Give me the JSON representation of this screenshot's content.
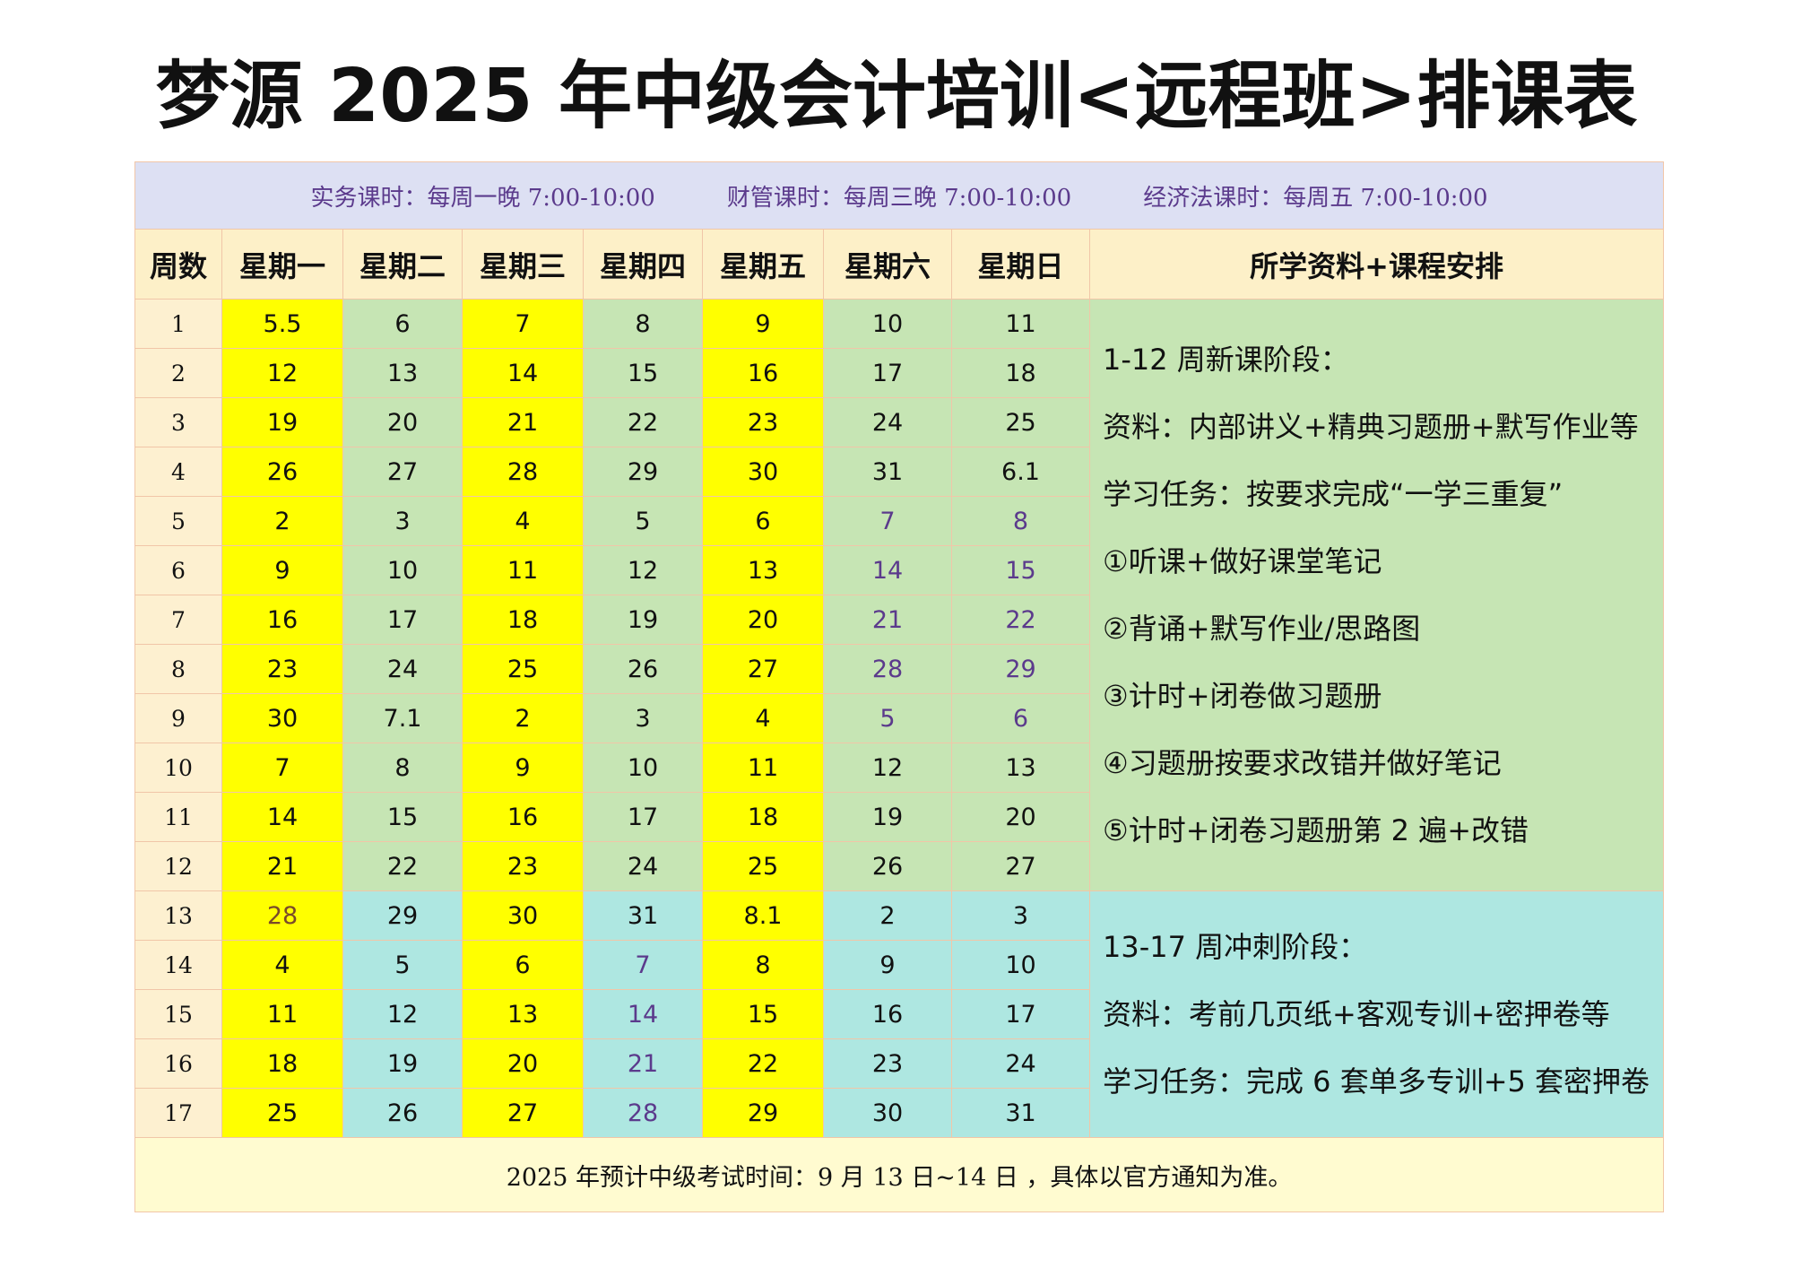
{
  "header": {
    "title": "梦源 2025 年中级会计培训<远程班>排课表"
  },
  "info": [
    "实务课时：每周一晚 7:00-10:00",
    "财管课时：每周三晚 7:00-10:00",
    "经济法课时：每周五 7:00-10:00"
  ],
  "table": {
    "columns": [
      "周数",
      "星期一",
      "星期二",
      "星期三",
      "星期四",
      "星期五",
      "星期六",
      "星期日",
      "所学资料+课程安排"
    ],
    "rows": [
      [
        "1",
        "5.5",
        "6",
        "7",
        "8",
        "9",
        "10",
        "11"
      ],
      [
        "2",
        "12",
        "13",
        "14",
        "15",
        "16",
        "17",
        "18"
      ],
      [
        "3",
        "19",
        "20",
        "21",
        "22",
        "23",
        "24",
        "25"
      ],
      [
        "4",
        "26",
        "27",
        "28",
        "29",
        "30",
        "31",
        "6.1"
      ],
      [
        "5",
        "2",
        "3",
        "4",
        "5",
        "6",
        "7",
        "8"
      ],
      [
        "6",
        "9",
        "10",
        "11",
        "12",
        "13",
        "14",
        "15"
      ],
      [
        "7",
        "16",
        "17",
        "18",
        "19",
        "20",
        "21",
        "22"
      ],
      [
        "8",
        "23",
        "24",
        "25",
        "26",
        "27",
        "28",
        "29"
      ],
      [
        "9",
        "30",
        "7.1",
        "2",
        "3",
        "4",
        "5",
        "6"
      ],
      [
        "10",
        "7",
        "8",
        "9",
        "10",
        "11",
        "12",
        "13"
      ],
      [
        "11",
        "14",
        "15",
        "16",
        "17",
        "18",
        "19",
        "20"
      ],
      [
        "12",
        "21",
        "22",
        "23",
        "24",
        "25",
        "26",
        "27"
      ],
      [
        "13",
        "28",
        "29",
        "30",
        "31",
        "8.1",
        "2",
        "3"
      ],
      [
        "14",
        "4",
        "5",
        "6",
        "7",
        "8",
        "9",
        "10"
      ],
      [
        "15",
        "11",
        "12",
        "13",
        "14",
        "15",
        "16",
        "17"
      ],
      [
        "16",
        "18",
        "19",
        "20",
        "21",
        "22",
        "23",
        "24"
      ],
      [
        "17",
        "25",
        "26",
        "27",
        "28",
        "29",
        "30",
        "31"
      ]
    ],
    "notes": [
      [
        "1-12 周新课阶段：",
        "资料：内部讲义+精典习题册+默写作业等",
        "学习任务：按要求完成“一学三重复”",
        "①听课+做好课堂笔记",
        "②背诵+默写作业/思路图",
        "③计时+闭卷做习题册",
        "④习题册按要求改错并做好笔记",
        "⑤计时+闭卷习题册第 2 遍+改错"
      ],
      [
        "13-17 周冲刺阶段：",
        "资料：考前几页纸+客观专训+密押卷等",
        "学习任务：完成 6 套单多专训+5 套密押卷"
      ]
    ]
  },
  "footer": "2025 年预计中级考试时间：9 月 13 日~14 日 ，具体以官方通知为准。"
}
